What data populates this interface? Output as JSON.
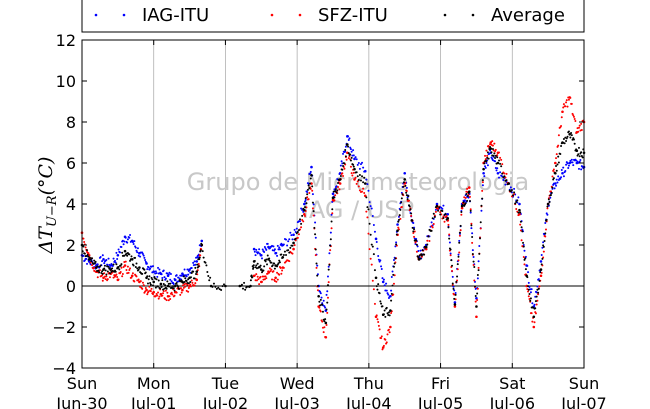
{
  "chart_data": {
    "type": "scatter",
    "ylabel": "ΔT_{U−R}(°C)",
    "ylabel_display": "ΔT",
    "ylabel_sub": "U−R",
    "ylabel_unit": "(°C)",
    "watermark": [
      "Grupo de Micrometeorologia",
      "IAG / USP"
    ],
    "ylim": [
      -4,
      12
    ],
    "yticks": [
      -4,
      -2,
      0,
      2,
      4,
      6,
      8,
      10,
      12
    ],
    "xlim": [
      0,
      7
    ],
    "xticks": [
      {
        "day": "Sun",
        "date": "Jun-30"
      },
      {
        "day": "Mon",
        "date": "Jul-01"
      },
      {
        "day": "Tue",
        "date": "Jul-02"
      },
      {
        "day": "Wed",
        "date": "Jul-03"
      },
      {
        "day": "Thu",
        "date": "Jul-04"
      },
      {
        "day": "Fri",
        "date": "Jul-05"
      },
      {
        "day": "Sat",
        "date": "Jul-06"
      },
      {
        "day": "Sun",
        "date": "Jul-07"
      }
    ],
    "grid": true,
    "zero_line": true,
    "legend_position": "top",
    "series": [
      {
        "name": "IAG-ITU",
        "color": "#0000ff",
        "x": [
          0,
          0.1,
          0.2,
          0.3,
          0.4,
          0.5,
          0.6,
          0.7,
          0.8,
          0.9,
          1.0,
          1.1,
          1.2,
          1.3,
          1.4,
          1.5,
          1.6,
          1.67,
          2.4,
          2.5,
          2.6,
          2.7,
          2.8,
          2.95,
          3.1,
          3.2,
          3.3,
          3.4,
          3.5,
          3.6,
          3.7,
          3.8,
          3.95,
          4.1,
          4.2,
          4.3,
          4.4,
          4.5,
          4.6,
          4.7,
          4.8,
          4.95,
          5.1,
          5.2,
          5.3,
          5.4,
          5.5,
          5.6,
          5.7,
          5.8,
          5.95,
          6.1,
          6.2,
          6.3,
          6.4,
          6.5,
          6.6,
          6.7,
          6.8,
          6.9,
          7.0
        ],
        "y": [
          1.5,
          1.2,
          1.0,
          1.3,
          1.0,
          1.5,
          2.4,
          2.2,
          1.6,
          1.1,
          0.7,
          0.6,
          0.5,
          0.3,
          0.6,
          0.8,
          1.2,
          2.2,
          1.8,
          1.5,
          1.9,
          1.6,
          2.0,
          2.5,
          4.0,
          5.8,
          0.0,
          -1.2,
          4.5,
          5.5,
          7.3,
          6.2,
          5.6,
          2.3,
          0.2,
          -0.5,
          3.0,
          5.5,
          3.2,
          1.4,
          2.0,
          4.0,
          3.5,
          -0.8,
          4.0,
          4.5,
          -0.6,
          5.5,
          6.5,
          5.5,
          5.0,
          4.0,
          1.0,
          -1.0,
          1.2,
          4.0,
          5.0,
          5.5,
          6.0,
          6.0,
          5.8
        ]
      },
      {
        "name": "SFZ-ITU",
        "color": "#ff0000",
        "x": [
          0,
          0.1,
          0.2,
          0.3,
          0.4,
          0.5,
          0.6,
          0.7,
          0.8,
          0.9,
          1.0,
          1.1,
          1.2,
          1.3,
          1.4,
          1.5,
          1.6,
          1.67,
          2.4,
          2.5,
          2.6,
          2.7,
          2.8,
          2.95,
          3.1,
          3.2,
          3.3,
          3.4,
          3.5,
          3.6,
          3.7,
          3.8,
          3.95,
          4.1,
          4.2,
          4.3,
          4.4,
          4.5,
          4.6,
          4.7,
          4.8,
          4.95,
          5.1,
          5.2,
          5.3,
          5.4,
          5.5,
          5.6,
          5.7,
          5.8,
          5.95,
          6.1,
          6.2,
          6.3,
          6.4,
          6.5,
          6.6,
          6.7,
          6.8,
          6.9,
          7.0
        ],
        "y": [
          2.6,
          1.5,
          0.7,
          0.4,
          0.6,
          0.3,
          1.0,
          0.5,
          0.2,
          -0.2,
          -0.3,
          -0.4,
          -0.5,
          -0.3,
          -0.2,
          0.0,
          0.3,
          2.0,
          0.5,
          0.2,
          0.7,
          0.4,
          0.9,
          1.8,
          3.5,
          5.0,
          -1.0,
          -2.5,
          4.2,
          5.0,
          6.5,
          5.2,
          4.4,
          -1.5,
          -3.0,
          -2.0,
          2.5,
          5.0,
          3.2,
          1.3,
          1.8,
          3.8,
          3.2,
          -1.0,
          3.8,
          4.8,
          -1.5,
          6.0,
          7.0,
          6.5,
          5.0,
          3.5,
          0.0,
          -2.0,
          0.5,
          4.0,
          6.0,
          8.5,
          9.2,
          7.5,
          8.0
        ]
      },
      {
        "name": "Average",
        "color": "#000000",
        "x": [
          0,
          0.1,
          0.2,
          0.3,
          0.4,
          0.5,
          0.6,
          0.7,
          0.8,
          0.9,
          1.0,
          1.1,
          1.2,
          1.3,
          1.4,
          1.5,
          1.6,
          1.67,
          1.8,
          2.0,
          2.2,
          2.35,
          2.4,
          2.5,
          2.6,
          2.7,
          2.8,
          2.95,
          3.1,
          3.2,
          3.3,
          3.4,
          3.5,
          3.6,
          3.7,
          3.8,
          3.95,
          4.1,
          4.2,
          4.3,
          4.4,
          4.5,
          4.6,
          4.7,
          4.8,
          4.95,
          5.1,
          5.2,
          5.3,
          5.4,
          5.5,
          5.6,
          5.7,
          5.8,
          5.95,
          6.1,
          6.2,
          6.3,
          6.4,
          6.5,
          6.6,
          6.7,
          6.8,
          6.9,
          7.0
        ],
        "y": [
          2.0,
          1.3,
          0.9,
          0.8,
          0.8,
          0.9,
          1.7,
          1.3,
          0.9,
          0.4,
          0.2,
          0.1,
          0.0,
          0.0,
          0.2,
          0.4,
          0.7,
          2.0,
          0.0,
          0.0,
          0.0,
          0.0,
          1.2,
          0.8,
          1.3,
          1.0,
          1.4,
          2.1,
          3.7,
          5.4,
          -0.5,
          -1.8,
          4.3,
          5.2,
          6.9,
          5.7,
          5.0,
          0.4,
          -1.4,
          -1.2,
          2.7,
          5.2,
          3.2,
          1.3,
          1.9,
          3.9,
          3.3,
          -0.9,
          3.9,
          4.6,
          -1.0,
          5.7,
          6.7,
          6.0,
          5.0,
          3.7,
          0.5,
          -1.5,
          0.8,
          4.0,
          5.5,
          7.0,
          7.4,
          6.6,
          6.5
        ]
      }
    ]
  }
}
